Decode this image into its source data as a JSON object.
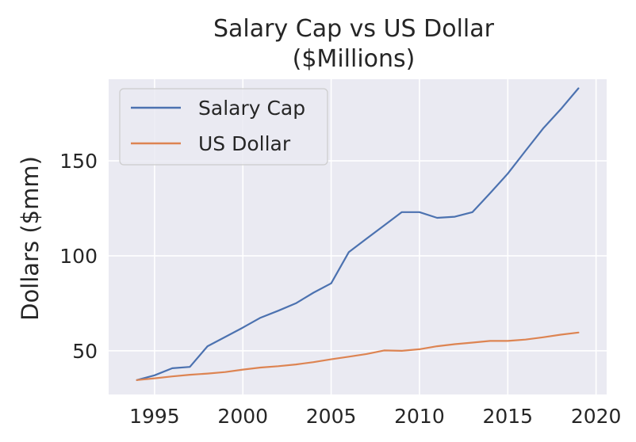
{
  "chart_data": {
    "type": "line",
    "title": [
      "Salary Cap vs US Dollar",
      "($Millions)"
    ],
    "xlabel": "",
    "ylabel": "Dollars ($mm)",
    "xlim": [
      1992.4,
      2020.6
    ],
    "ylim": [
      27,
      193
    ],
    "x_ticks": [
      1995,
      2000,
      2005,
      2010,
      2015,
      2020
    ],
    "y_ticks": [
      50,
      100,
      150
    ],
    "grid": true,
    "legend_position": "top-left",
    "x": [
      1994,
      1995,
      1996,
      1997,
      1998,
      1999,
      2000,
      2001,
      2002,
      2003,
      2004,
      2005,
      2006,
      2007,
      2008,
      2009,
      2010,
      2011,
      2012,
      2013,
      2014,
      2015,
      2016,
      2017,
      2018,
      2019
    ],
    "series": [
      {
        "name": "Salary Cap",
        "color": "#4c72b0",
        "values": [
          34.6,
          37.1,
          40.8,
          41.5,
          52.4,
          57.3,
          62.2,
          67.4,
          71.1,
          75.0,
          80.6,
          85.5,
          102.0,
          109.0,
          116.0,
          123.0,
          123.0,
          120.0,
          120.6,
          123.0,
          133.0,
          143.28,
          155.27,
          167.0,
          177.2,
          188.2
        ]
      },
      {
        "name": "US Dollar",
        "color": "#dd8452",
        "values": [
          34.6,
          35.5,
          36.5,
          37.4,
          38.0,
          38.8,
          40.1,
          41.2,
          41.9,
          42.8,
          44.0,
          45.5,
          46.9,
          48.3,
          50.2,
          50.0,
          50.8,
          52.4,
          53.5,
          54.3,
          55.2,
          55.2,
          55.9,
          57.1,
          58.5,
          59.6
        ]
      }
    ]
  },
  "colors": {
    "plot_background": "#eaeaf2",
    "grid": "#ffffff",
    "legend_border": "#cccccc"
  }
}
